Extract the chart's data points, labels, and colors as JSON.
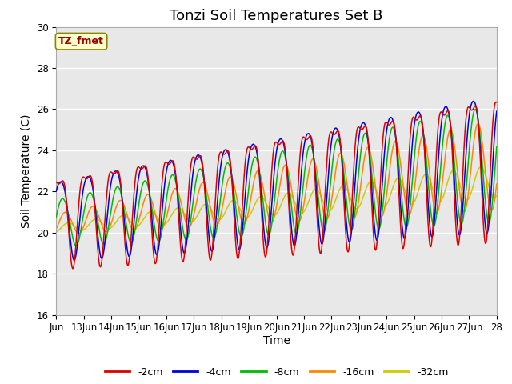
{
  "title": "Tonzi Soil Temperatures Set B",
  "xlabel": "Time",
  "ylabel": "Soil Temperature (C)",
  "ylim": [
    16,
    30
  ],
  "xlim_days": [
    0,
    16
  ],
  "annotation_label": "TZ_fmet",
  "legend_labels": [
    "-2cm",
    "-4cm",
    "-8cm",
    "-16cm",
    "-32cm"
  ],
  "line_colors": [
    "#dd0000",
    "#0000dd",
    "#00bb00",
    "#ff8800",
    "#cccc00"
  ],
  "xtick_labels": [
    "Jun",
    "13Jun",
    "14Jun",
    "15Jun",
    "16Jun",
    "17Jun",
    "18Jun",
    "19Jun",
    "20Jun",
    "21Jun",
    "22Jun",
    "23Jun",
    "24Jun",
    "25Jun",
    "26Jun",
    "27Jun",
    "28"
  ],
  "background_color": "#ffffff",
  "plot_bg_color": "#e8e8e8",
  "grid_color": "#ffffff",
  "title_fontsize": 13,
  "axis_label_fontsize": 10,
  "tick_fontsize": 8.5
}
